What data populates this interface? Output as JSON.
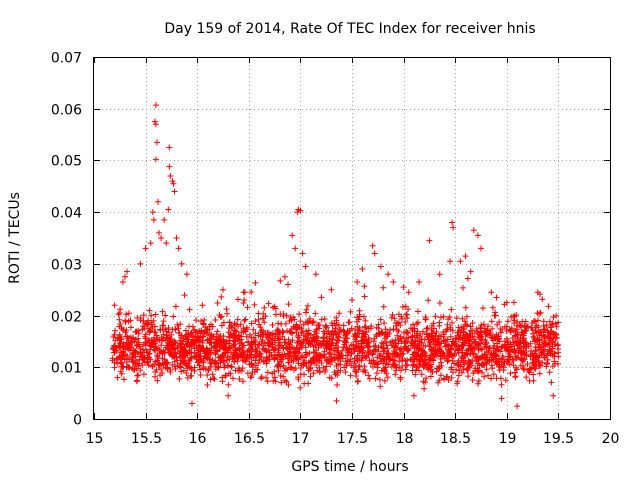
{
  "chart_data": {
    "type": "scatter",
    "title": "Day 159 of 2014, Rate Of TEC Index for receiver hnis",
    "xlabel": "GPS time / hours",
    "ylabel": "ROTI / TECUs",
    "xlim": [
      15,
      20
    ],
    "ylim": [
      0,
      0.07
    ],
    "xticks": [
      "15",
      "15.5",
      "16",
      "16.5",
      "17",
      "17.5",
      "18",
      "18.5",
      "19",
      "19.5",
      "20"
    ],
    "yticks": [
      "0",
      "0.01",
      "0.02",
      "0.03",
      "0.04",
      "0.05",
      "0.06",
      "0.07"
    ],
    "grid": true,
    "marker": "+",
    "color": "#ff0000",
    "series": [
      {
        "name": "ROTI",
        "x_range": [
          15.18,
          19.5
        ],
        "typical_range": [
          0.005,
          0.02
        ],
        "points": [
          [
            15.6,
            0.0607
          ],
          [
            15.59,
            0.0575
          ],
          [
            15.6,
            0.057
          ],
          [
            15.61,
            0.0535
          ],
          [
            15.6,
            0.0502
          ],
          [
            15.58,
            0.0385
          ],
          [
            15.57,
            0.04
          ],
          [
            15.62,
            0.042
          ],
          [
            15.63,
            0.036
          ],
          [
            15.65,
            0.035
          ],
          [
            15.7,
            0.034
          ],
          [
            15.73,
            0.0525
          ],
          [
            15.73,
            0.0488
          ],
          [
            15.74,
            0.047
          ],
          [
            15.76,
            0.046
          ],
          [
            15.77,
            0.0455
          ],
          [
            15.78,
            0.044
          ],
          [
            15.72,
            0.0405
          ],
          [
            15.68,
            0.0385
          ],
          [
            15.8,
            0.035
          ],
          [
            15.82,
            0.033
          ],
          [
            15.85,
            0.03
          ],
          [
            15.55,
            0.034
          ],
          [
            15.5,
            0.033
          ],
          [
            15.45,
            0.03
          ],
          [
            15.3,
            0.0275
          ],
          [
            15.32,
            0.0285
          ],
          [
            15.28,
            0.0265
          ],
          [
            15.2,
            0.022
          ],
          [
            15.25,
            0.0205
          ],
          [
            15.9,
            0.028
          ],
          [
            16.05,
            0.022
          ],
          [
            16.25,
            0.025
          ],
          [
            16.45,
            0.0245
          ],
          [
            16.65,
            0.0215
          ],
          [
            16.85,
            0.0275
          ],
          [
            16.88,
            0.026
          ],
          [
            16.92,
            0.0355
          ],
          [
            16.95,
            0.033
          ],
          [
            16.97,
            0.04
          ],
          [
            16.98,
            0.0405
          ],
          [
            17.0,
            0.0403
          ],
          [
            17.02,
            0.032
          ],
          [
            17.05,
            0.0295
          ],
          [
            17.15,
            0.028
          ],
          [
            17.3,
            0.025
          ],
          [
            17.5,
            0.023
          ],
          [
            17.55,
            0.0265
          ],
          [
            17.6,
            0.029
          ],
          [
            17.7,
            0.0335
          ],
          [
            17.72,
            0.032
          ],
          [
            17.78,
            0.0295
          ],
          [
            17.85,
            0.028
          ],
          [
            17.9,
            0.0265
          ],
          [
            18.0,
            0.0255
          ],
          [
            18.05,
            0.0245
          ],
          [
            18.15,
            0.0265
          ],
          [
            18.25,
            0.0345
          ],
          [
            18.35,
            0.028
          ],
          [
            18.45,
            0.0305
          ],
          [
            18.47,
            0.038
          ],
          [
            18.48,
            0.037
          ],
          [
            18.55,
            0.0305
          ],
          [
            18.6,
            0.0315
          ],
          [
            18.65,
            0.0285
          ],
          [
            18.68,
            0.0365
          ],
          [
            18.72,
            0.0355
          ],
          [
            18.75,
            0.033
          ],
          [
            18.85,
            0.0245
          ],
          [
            18.9,
            0.0235
          ],
          [
            19.0,
            0.0225
          ],
          [
            19.3,
            0.0245
          ],
          [
            19.1,
            0.0025
          ],
          [
            15.95,
            0.003
          ],
          [
            17.35,
            0.0035
          ],
          [
            18.1,
            0.0045
          ],
          [
            18.95,
            0.004
          ],
          [
            16.3,
            0.0045
          ],
          [
            19.45,
            0.0045
          ]
        ]
      }
    ]
  }
}
